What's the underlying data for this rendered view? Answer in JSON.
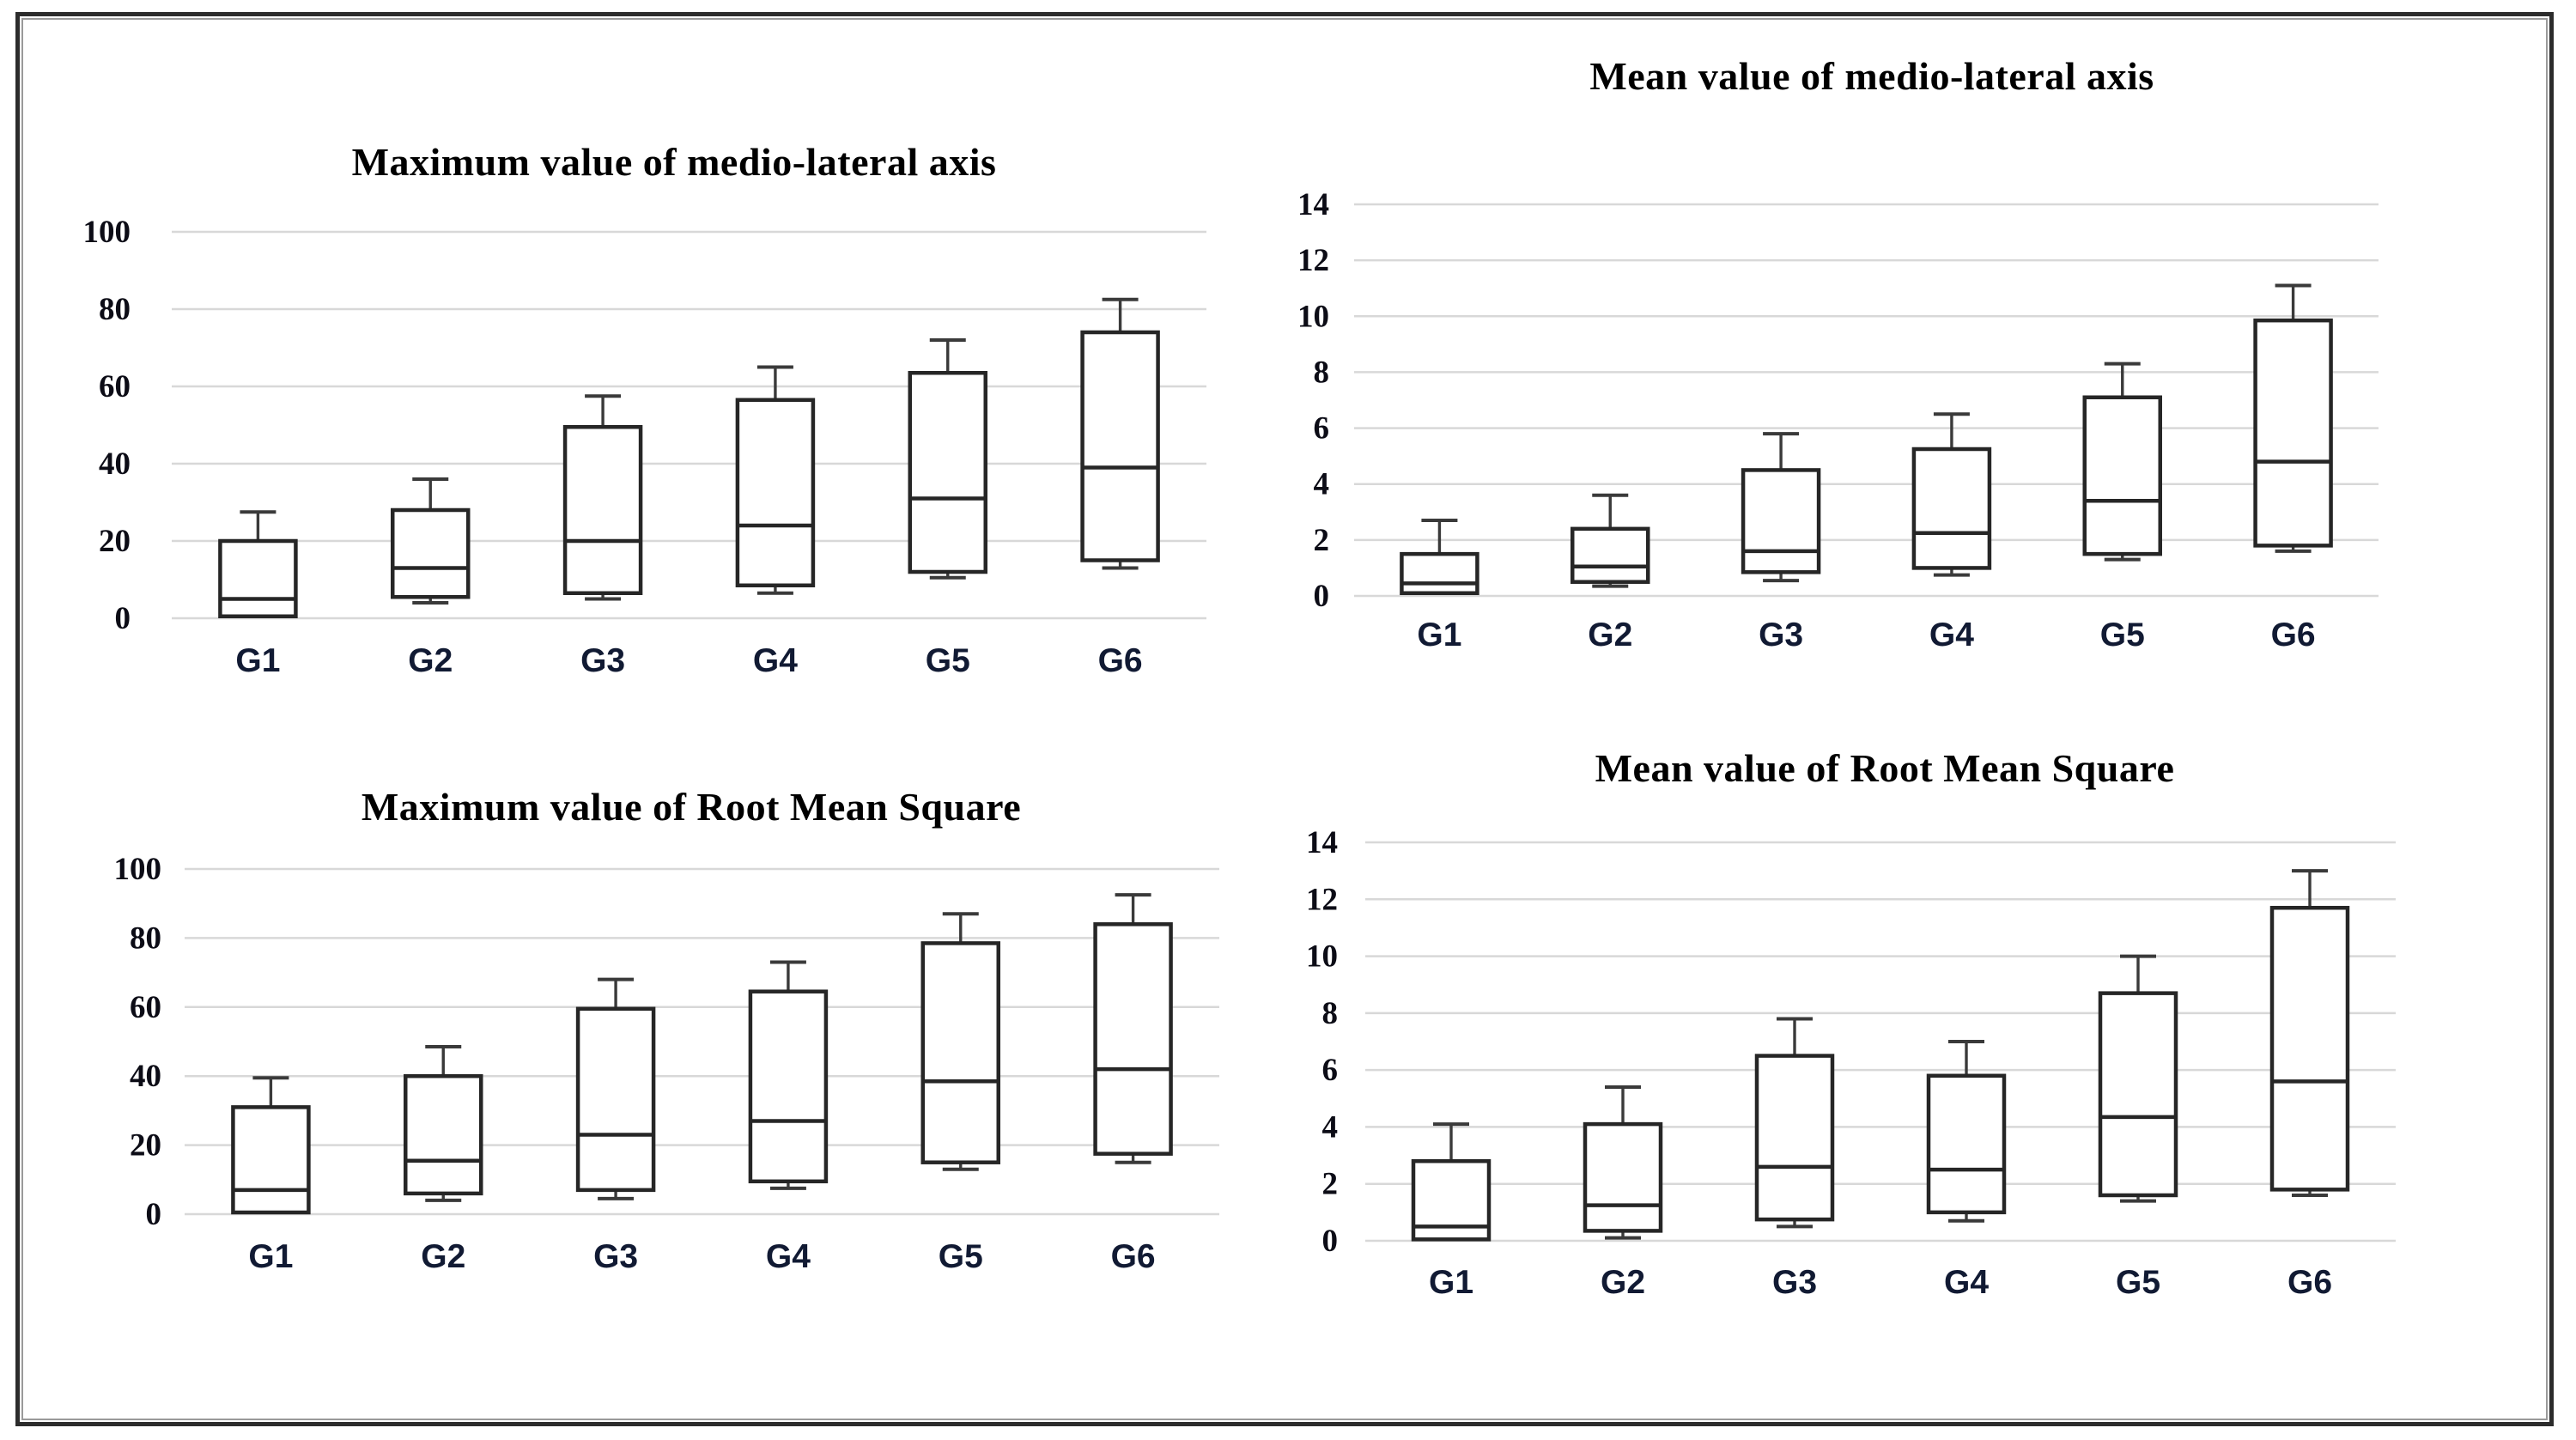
{
  "styles": {
    "grid_color": "#d8d8d8",
    "box_stroke": "#262626",
    "whisker_stroke": "#3a3a3a",
    "tick_label_color": "#0c0c16",
    "category_label_color": "#111a33",
    "title_color": "#000000",
    "frame_border_color": "#2c2c2c",
    "background": "#ffffff"
  },
  "chart_data": [
    {
      "id": "max-medio-lateral",
      "type": "box",
      "title": "Maximum value of medio-lateral axis",
      "xlabel": "",
      "ylabel": "",
      "ylim": [
        0,
        100
      ],
      "y_ticks": [
        0,
        20,
        40,
        60,
        80,
        100
      ],
      "grid": true,
      "legend": "none",
      "categories": [
        "G1",
        "G2",
        "G3",
        "G4",
        "G5",
        "G6"
      ],
      "series": [
        {
          "category": "G1",
          "min": 0.5,
          "q1": 0.5,
          "median": 5,
          "q3": 20,
          "max": 27.5
        },
        {
          "category": "G2",
          "min": 4,
          "q1": 5.5,
          "median": 13,
          "q3": 28,
          "max": 36
        },
        {
          "category": "G3",
          "min": 5,
          "q1": 6.5,
          "median": 20,
          "q3": 49.5,
          "max": 57.5
        },
        {
          "category": "G4",
          "min": 6.5,
          "q1": 8.5,
          "median": 24,
          "q3": 56.5,
          "max": 65
        },
        {
          "category": "G5",
          "min": 10.5,
          "q1": 12,
          "median": 31,
          "q3": 63.5,
          "max": 72
        },
        {
          "category": "G6",
          "min": 13,
          "q1": 15,
          "median": 39,
          "q3": 74,
          "max": 82.5
        }
      ]
    },
    {
      "id": "mean-medio-lateral",
      "type": "box",
      "title": "Mean value of medio-lateral axis",
      "xlabel": "",
      "ylabel": "",
      "ylim": [
        0,
        14
      ],
      "y_ticks": [
        0,
        2,
        4,
        6,
        8,
        10,
        12,
        14
      ],
      "grid": true,
      "legend": "none",
      "categories": [
        "G1",
        "G2",
        "G3",
        "G4",
        "G5",
        "G6"
      ],
      "series": [
        {
          "category": "G1",
          "min": 0.1,
          "q1": 0.1,
          "median": 0.45,
          "q3": 1.5,
          "max": 2.7
        },
        {
          "category": "G2",
          "min": 0.35,
          "q1": 0.5,
          "median": 1.05,
          "q3": 2.4,
          "max": 3.6
        },
        {
          "category": "G3",
          "min": 0.55,
          "q1": 0.85,
          "median": 1.6,
          "q3": 4.5,
          "max": 5.8
        },
        {
          "category": "G4",
          "min": 0.75,
          "q1": 1.0,
          "median": 2.25,
          "q3": 5.25,
          "max": 6.5
        },
        {
          "category": "G5",
          "min": 1.3,
          "q1": 1.5,
          "median": 3.4,
          "q3": 7.1,
          "max": 8.3
        },
        {
          "category": "G6",
          "min": 1.6,
          "q1": 1.8,
          "median": 4.8,
          "q3": 9.85,
          "max": 11.1
        }
      ]
    },
    {
      "id": "max-root-mean-square",
      "type": "box",
      "title": "Maximum value of Root Mean Square",
      "xlabel": "",
      "ylabel": "",
      "ylim": [
        0,
        100
      ],
      "y_ticks": [
        0,
        20,
        40,
        60,
        80,
        100
      ],
      "grid": true,
      "legend": "none",
      "categories": [
        "G1",
        "G2",
        "G3",
        "G4",
        "G5",
        "G6"
      ],
      "series": [
        {
          "category": "G1",
          "min": 0.5,
          "q1": 0.5,
          "median": 7,
          "q3": 31,
          "max": 39.5
        },
        {
          "category": "G2",
          "min": 4,
          "q1": 6,
          "median": 15.5,
          "q3": 40,
          "max": 48.5
        },
        {
          "category": "G3",
          "min": 4.5,
          "q1": 7,
          "median": 23,
          "q3": 59.5,
          "max": 68
        },
        {
          "category": "G4",
          "min": 7.5,
          "q1": 9.5,
          "median": 27,
          "q3": 64.5,
          "max": 73
        },
        {
          "category": "G5",
          "min": 13,
          "q1": 15,
          "median": 38.5,
          "q3": 78.5,
          "max": 87
        },
        {
          "category": "G6",
          "min": 15,
          "q1": 17.5,
          "median": 42,
          "q3": 84,
          "max": 92.5
        }
      ]
    },
    {
      "id": "mean-root-mean-square",
      "type": "box",
      "title": "Mean value of Root Mean Square",
      "xlabel": "",
      "ylabel": "",
      "ylim": [
        0,
        14
      ],
      "y_ticks": [
        0,
        2,
        4,
        6,
        8,
        10,
        12,
        14
      ],
      "grid": true,
      "legend": "none",
      "categories": [
        "G1",
        "G2",
        "G3",
        "G4",
        "G5",
        "G6"
      ],
      "series": [
        {
          "category": "G1",
          "min": 0.05,
          "q1": 0.05,
          "median": 0.5,
          "q3": 2.8,
          "max": 4.1
        },
        {
          "category": "G2",
          "min": 0.1,
          "q1": 0.35,
          "median": 1.25,
          "q3": 4.1,
          "max": 5.4
        },
        {
          "category": "G3",
          "min": 0.5,
          "q1": 0.75,
          "median": 2.6,
          "q3": 6.5,
          "max": 7.8
        },
        {
          "category": "G4",
          "min": 0.7,
          "q1": 1.0,
          "median": 2.5,
          "q3": 5.8,
          "max": 7.0
        },
        {
          "category": "G5",
          "min": 1.4,
          "q1": 1.6,
          "median": 4.35,
          "q3": 8.7,
          "max": 10.0
        },
        {
          "category": "G6",
          "min": 1.6,
          "q1": 1.8,
          "median": 5.6,
          "q3": 11.7,
          "max": 13.0
        }
      ]
    }
  ]
}
